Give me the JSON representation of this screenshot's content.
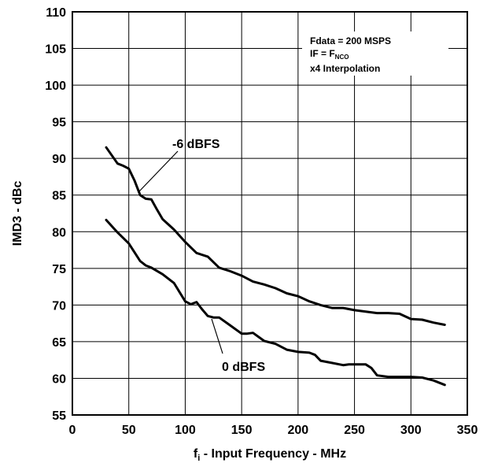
{
  "chart_data": {
    "type": "line",
    "xlabel": {
      "main": "f",
      "sub": "i",
      "rest": " - Input Frequency - MHz"
    },
    "ylabel": "IMD3 - dBc",
    "xlim": [
      0,
      350
    ],
    "ylim": [
      55,
      110
    ],
    "x_ticks": [
      0,
      50,
      100,
      150,
      200,
      250,
      300,
      350
    ],
    "y_ticks": [
      55,
      60,
      65,
      70,
      75,
      80,
      85,
      90,
      95,
      100,
      105,
      110
    ],
    "grid": true,
    "annotation": {
      "line1": "Fdata = 200 MSPS",
      "line2_main": "IF = F",
      "line2_sub": "NCO",
      "line3": "x4 Interpolation"
    },
    "series": [
      {
        "name": "-6 dBFS",
        "x": [
          30,
          40,
          45,
          50,
          55,
          60,
          65,
          70,
          75,
          80,
          90,
          100,
          110,
          120,
          130,
          140,
          150,
          160,
          170,
          180,
          190,
          200,
          210,
          220,
          230,
          240,
          250,
          260,
          270,
          280,
          290,
          300,
          310,
          320,
          330
        ],
        "y": [
          91.5,
          89.3,
          89.0,
          88.6,
          87.0,
          85.0,
          84.5,
          84.4,
          83.0,
          81.7,
          80.3,
          78.6,
          77.1,
          76.6,
          75.1,
          74.6,
          74.0,
          73.2,
          72.8,
          72.3,
          71.6,
          71.2,
          70.5,
          70.0,
          69.6,
          69.6,
          69.3,
          69.1,
          68.9,
          68.9,
          68.8,
          68.1,
          68.0,
          67.6,
          67.3
        ]
      },
      {
        "name": "0 dBFS",
        "x": [
          30,
          40,
          50,
          55,
          60,
          65,
          70,
          80,
          90,
          100,
          105,
          110,
          115,
          120,
          125,
          130,
          140,
          150,
          155,
          160,
          170,
          180,
          190,
          200,
          210,
          215,
          220,
          230,
          240,
          245,
          250,
          260,
          265,
          270,
          280,
          290,
          300,
          310,
          320,
          330
        ],
        "y": [
          81.6,
          79.9,
          78.4,
          77.2,
          76.0,
          75.4,
          75.1,
          74.2,
          73.0,
          70.5,
          70.1,
          70.4,
          69.4,
          68.5,
          68.3,
          68.3,
          67.2,
          66.1,
          66.1,
          66.2,
          65.1,
          64.7,
          63.9,
          63.6,
          63.5,
          63.2,
          62.4,
          62.1,
          61.8,
          61.9,
          61.9,
          61.9,
          61.4,
          60.4,
          60.2,
          60.2,
          60.2,
          60.1,
          59.7,
          59.1
        ]
      }
    ]
  }
}
